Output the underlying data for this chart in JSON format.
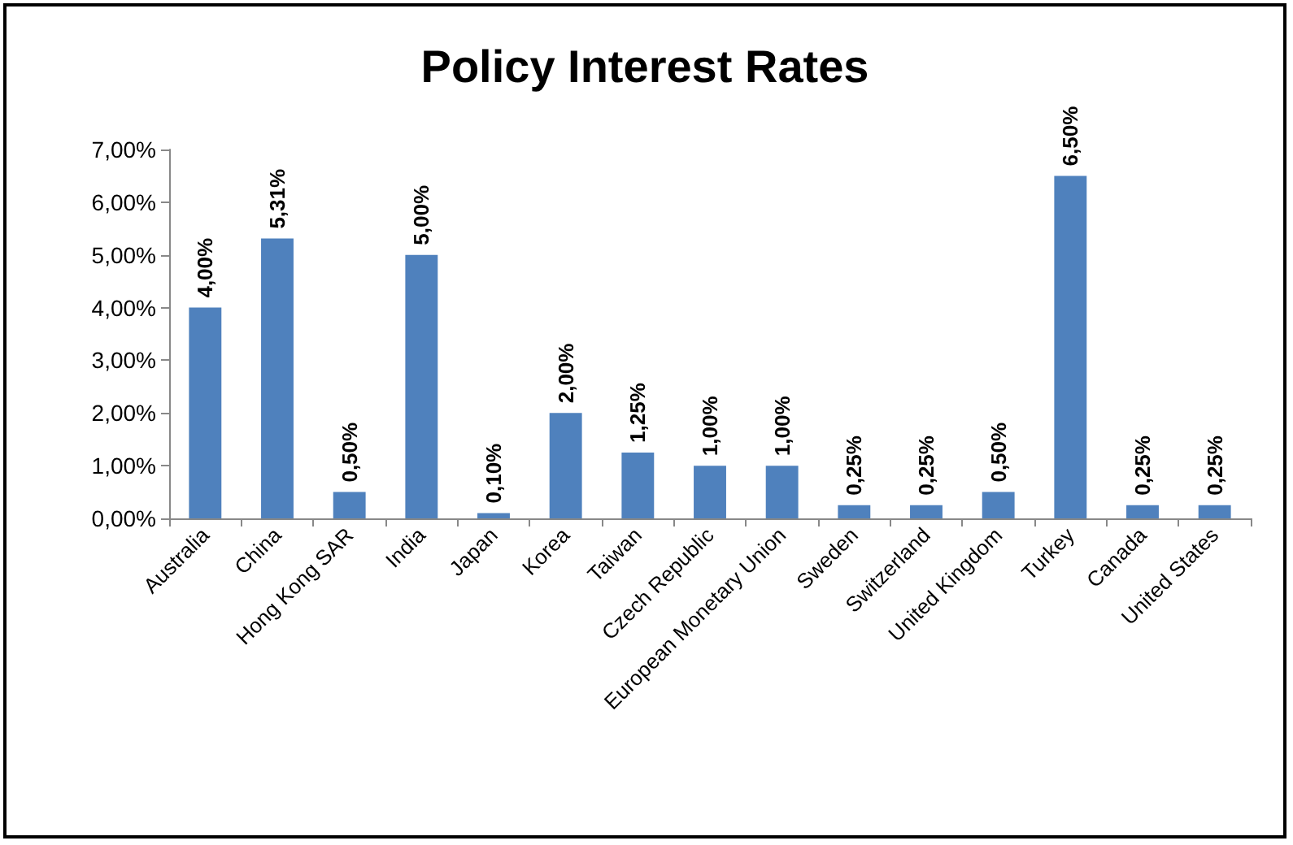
{
  "chart_data": {
    "type": "bar",
    "title": "Policy Interest Rates",
    "categories": [
      "Australia",
      "China",
      "Hong Kong SAR",
      "India",
      "Japan",
      "Korea",
      "Taiwan",
      "Czech Republic",
      "European Monetary Union",
      "Sweden",
      "Switzerland",
      "United Kingdom",
      "Turkey",
      "Canada",
      "United States"
    ],
    "values": [
      4.0,
      5.31,
      0.5,
      5.0,
      0.1,
      2.0,
      1.25,
      1.0,
      1.0,
      0.25,
      0.25,
      0.5,
      6.5,
      0.25,
      0.25
    ],
    "value_labels": [
      "4,00%",
      "5,31%",
      "0,50%",
      "5,00%",
      "0,10%",
      "2,00%",
      "1,25%",
      "1,00%",
      "1,00%",
      "0,25%",
      "0,25%",
      "0,50%",
      "6,50%",
      "0,25%",
      "0,25%"
    ],
    "color": "#4f81bd",
    "ylim": [
      0,
      7
    ],
    "yticks": [
      {
        "value": 0,
        "label": "0,00%"
      },
      {
        "value": 1,
        "label": "1,00%"
      },
      {
        "value": 2,
        "label": "2,00%"
      },
      {
        "value": 3,
        "label": "3,00%"
      },
      {
        "value": 4,
        "label": "4,00%"
      },
      {
        "value": 5,
        "label": "5,00%"
      },
      {
        "value": 6,
        "label": "6,00%"
      },
      {
        "value": 7,
        "label": "7,00%"
      }
    ],
    "grid": false
  }
}
